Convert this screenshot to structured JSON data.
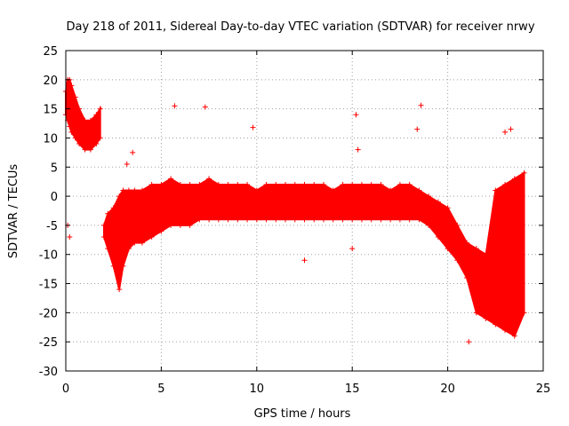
{
  "chart_data": {
    "type": "scatter",
    "title": "Day 218 of 2011, Sidereal Day-to-day VTEC variation (SDTVAR) for receiver nrwy",
    "xlabel": "GPS time / hours",
    "ylabel": "SDTVAR / TECUs",
    "xlim": [
      0,
      25
    ],
    "ylim": [
      -30,
      25
    ],
    "x_ticks": [
      0,
      5,
      10,
      15,
      20,
      25
    ],
    "y_ticks": [
      -30,
      -25,
      -20,
      -15,
      -10,
      -5,
      0,
      5,
      10,
      15,
      20,
      25
    ],
    "grid": true,
    "marker": "+",
    "series": [
      {
        "name": "SDTVAR",
        "color": "#ff0000",
        "envelope": {
          "x": [
            0.0,
            0.1,
            0.2,
            0.3,
            0.5,
            0.7,
            1.0,
            1.3,
            1.6,
            1.8,
            2.0,
            2.2,
            2.5,
            2.8,
            3.0,
            3.3,
            3.6,
            4.0,
            4.5,
            5.0,
            5.5,
            6.0,
            6.5,
            7.0,
            7.5,
            8.0,
            8.5,
            9.0,
            9.5,
            10.0,
            10.5,
            11.0,
            11.5,
            12.0,
            12.5,
            13.0,
            13.5,
            14.0,
            14.5,
            15.0,
            15.5,
            16.0,
            16.5,
            17.0,
            17.5,
            18.0,
            18.5,
            19.0,
            19.5,
            20.0,
            20.5,
            21.0,
            21.5,
            22.0,
            22.5,
            23.0,
            23.5,
            24.0
          ],
          "upper": [
            18,
            20,
            20,
            19,
            17,
            15,
            13,
            13,
            14,
            15,
            -5,
            -3,
            -2,
            0,
            1,
            1,
            1,
            1,
            2,
            2,
            3,
            2,
            2,
            2,
            3,
            2,
            2,
            2,
            2,
            1,
            2,
            2,
            2,
            2,
            2,
            2,
            2,
            1,
            2,
            2,
            2,
            2,
            2,
            1,
            2,
            2,
            1,
            0,
            -1,
            -2,
            -5,
            -8,
            -9,
            -10,
            1,
            2,
            3,
            4
          ],
          "lower": [
            14,
            13,
            12,
            11,
            10,
            9,
            8,
            8,
            9,
            10,
            -7,
            -9,
            -12,
            -16,
            -12,
            -9,
            -8,
            -8,
            -7,
            -6,
            -5,
            -5,
            -5,
            -4,
            -4,
            -4,
            -4,
            -4,
            -4,
            -4,
            -4,
            -4,
            -4,
            -4,
            -4,
            -4,
            -4,
            -4,
            -4,
            -4,
            -4,
            -4,
            -4,
            -4,
            -4,
            -4,
            -4,
            -5,
            -7,
            -9,
            -11,
            -14,
            -20,
            -21,
            -22,
            -23,
            -24,
            -20
          ]
        },
        "outliers": {
          "x": [
            7.3,
            9.8,
            15.2,
            15.3,
            18.4,
            18.6,
            3.5,
            21.1,
            12.5,
            15.0,
            23.0,
            23.3,
            5.7,
            3.2,
            0.2,
            0.1
          ],
          "y": [
            15.3,
            11.8,
            14.0,
            8.0,
            11.5,
            15.6,
            7.5,
            -25.0,
            -11.0,
            -9.0,
            11.0,
            11.5,
            15.5,
            5.5,
            -7.0,
            -5.0
          ]
        }
      }
    ]
  }
}
